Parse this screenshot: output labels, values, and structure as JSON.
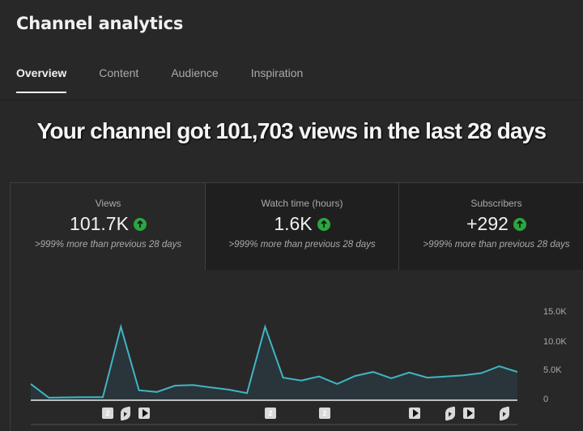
{
  "header": {
    "title": "Channel analytics"
  },
  "tabs": [
    {
      "label": "Overview",
      "active": true
    },
    {
      "label": "Content",
      "active": false
    },
    {
      "label": "Audience",
      "active": false
    },
    {
      "label": "Inspiration",
      "active": false
    }
  ],
  "headline": "Your channel got 101,703 views in the last 28 days",
  "metrics": [
    {
      "label": "Views",
      "value": "101.7K",
      "trend_icon": "arrow-up-circle-icon",
      "note": ">999% more than previous 28 days"
    },
    {
      "label": "Watch time (hours)",
      "value": "1.6K",
      "trend_icon": "arrow-up-circle-icon",
      "note": ">999% more than previous 28 days"
    },
    {
      "label": "Subscribers",
      "value": "+292",
      "trend_icon": "arrow-up-circle-icon",
      "note": ">999% more than previous 28 days"
    }
  ],
  "colors": {
    "background": "#282828",
    "card_dark": "#1f1f1f",
    "line": "#41b4c4",
    "trend_up": "#2ba640",
    "text_secondary": "#aaaaaa"
  },
  "chart_data": {
    "type": "area",
    "title": "Views",
    "xlabel": "",
    "ylabel": "",
    "y_ticks": [
      "15.0K",
      "10.0K",
      "5.0K",
      "0"
    ],
    "ylim": [
      0,
      15000
    ],
    "grid": false,
    "x": [
      1,
      2,
      3,
      4,
      5,
      6,
      7,
      8,
      9,
      10,
      11,
      12,
      13,
      14,
      15,
      16,
      17,
      18,
      19,
      20,
      21,
      22,
      23,
      24,
      25,
      26,
      27,
      28
    ],
    "values": [
      2700,
      300,
      350,
      400,
      400,
      12700,
      1600,
      1300,
      2400,
      2500,
      2100,
      1700,
      1100,
      12700,
      3800,
      3300,
      4000,
      2700,
      4100,
      4800,
      3700,
      4700,
      3800,
      4000,
      4200,
      4600,
      5800,
      4800
    ],
    "markers": [
      {
        "type": "badge",
        "label": "2",
        "day": 6
      },
      {
        "type": "shorts",
        "day": 7
      },
      {
        "type": "video",
        "day": 7.5
      },
      {
        "type": "badge",
        "label": "2",
        "day": 14
      },
      {
        "type": "badge",
        "label": "2",
        "day": 17
      },
      {
        "type": "video",
        "day": 22
      },
      {
        "type": "shorts",
        "day": 24
      },
      {
        "type": "video",
        "day": 25
      },
      {
        "type": "shorts",
        "day": 27
      }
    ]
  }
}
